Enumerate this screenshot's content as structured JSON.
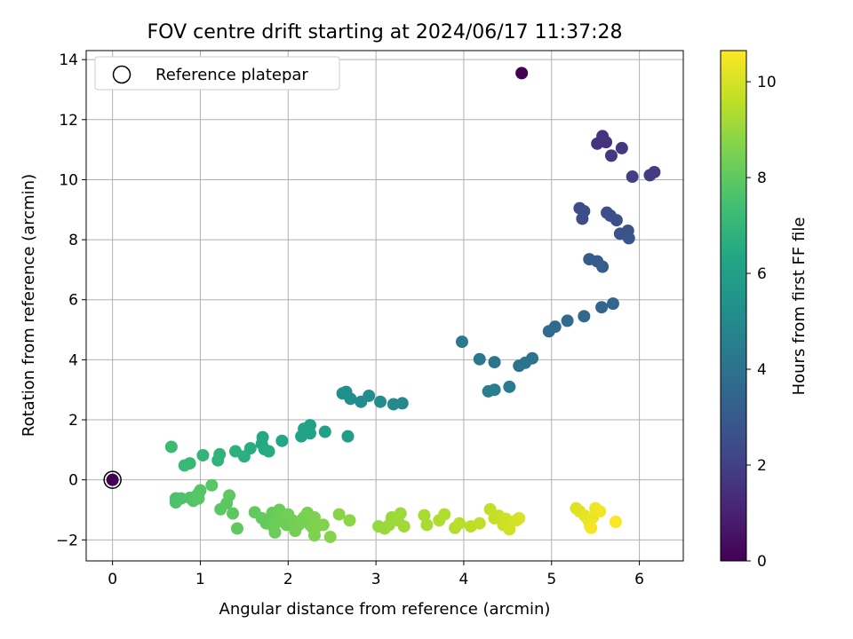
{
  "chart_data": {
    "type": "scatter",
    "title": "FOV centre drift starting at 2024/06/17 11:37:28",
    "xlabel": "Angular distance from reference (arcmin)",
    "ylabel": "Rotation from reference (arcmin)",
    "xlim": [
      -0.3,
      6.5
    ],
    "ylim": [
      -2.7,
      14.3
    ],
    "xticks": [
      0,
      1,
      2,
      3,
      4,
      5,
      6
    ],
    "yticks": [
      -2,
      0,
      2,
      4,
      6,
      8,
      10,
      12,
      14
    ],
    "grid": true,
    "legend": {
      "position": "top-left",
      "entries": [
        "Reference platepar"
      ]
    },
    "colorbar": {
      "label": "Hours from first FF file",
      "range": [
        0,
        10.65
      ],
      "ticks": [
        0,
        2,
        4,
        6,
        8,
        10
      ],
      "colormap": "viridis"
    },
    "reference_point": {
      "x": 0,
      "y": 0,
      "hours": 0
    },
    "points": [
      [
        4.66,
        13.55,
        0.0
      ],
      [
        5.58,
        11.45,
        1.5
      ],
      [
        5.52,
        11.2,
        1.6
      ],
      [
        5.62,
        11.25,
        1.6
      ],
      [
        5.8,
        11.05,
        1.7
      ],
      [
        5.68,
        10.8,
        1.75
      ],
      [
        6.12,
        10.15,
        1.85
      ],
      [
        6.17,
        10.25,
        1.85
      ],
      [
        5.92,
        10.1,
        1.95
      ],
      [
        5.32,
        9.05,
        2.4
      ],
      [
        5.37,
        8.95,
        2.45
      ],
      [
        5.35,
        8.7,
        2.5
      ],
      [
        5.63,
        8.9,
        2.55
      ],
      [
        5.67,
        8.8,
        2.6
      ],
      [
        5.74,
        8.65,
        2.65
      ],
      [
        5.87,
        8.3,
        2.7
      ],
      [
        5.78,
        8.2,
        2.75
      ],
      [
        5.88,
        8.05,
        2.8
      ],
      [
        5.43,
        7.35,
        3.0
      ],
      [
        5.52,
        7.28,
        3.05
      ],
      [
        5.58,
        7.1,
        3.1
      ],
      [
        5.7,
        5.87,
        3.5
      ],
      [
        5.57,
        5.75,
        3.55
      ],
      [
        5.37,
        5.45,
        3.6
      ],
      [
        5.18,
        5.3,
        3.65
      ],
      [
        5.04,
        5.1,
        3.7
      ],
      [
        4.97,
        4.95,
        3.75
      ],
      [
        4.78,
        4.05,
        4.0
      ],
      [
        4.7,
        3.9,
        4.05
      ],
      [
        4.63,
        3.8,
        4.1
      ],
      [
        4.35,
        3.92,
        4.15
      ],
      [
        4.18,
        4.02,
        4.2
      ],
      [
        3.98,
        4.6,
        4.3
      ],
      [
        4.52,
        3.1,
        4.45
      ],
      [
        4.35,
        3.0,
        4.5
      ],
      [
        4.28,
        2.95,
        4.55
      ],
      [
        3.3,
        2.55,
        5.0
      ],
      [
        3.2,
        2.52,
        5.05
      ],
      [
        3.05,
        2.6,
        5.1
      ],
      [
        2.92,
        2.8,
        5.15
      ],
      [
        2.83,
        2.6,
        5.2
      ],
      [
        2.71,
        2.7,
        5.25
      ],
      [
        2.66,
        2.93,
        5.3
      ],
      [
        2.62,
        2.88,
        5.3
      ],
      [
        2.68,
        1.45,
        5.9
      ],
      [
        2.42,
        1.6,
        6.0
      ],
      [
        2.25,
        1.82,
        6.05
      ],
      [
        2.18,
        1.7,
        6.1
      ],
      [
        2.25,
        1.55,
        6.1
      ],
      [
        2.15,
        1.45,
        6.15
      ],
      [
        1.93,
        1.3,
        6.3
      ],
      [
        1.71,
        1.42,
        6.4
      ],
      [
        1.7,
        1.2,
        6.45
      ],
      [
        1.73,
        1.02,
        6.5
      ],
      [
        1.78,
        0.95,
        6.55
      ],
      [
        1.57,
        1.05,
        6.6
      ],
      [
        1.5,
        0.78,
        6.7
      ],
      [
        1.4,
        0.95,
        6.75
      ],
      [
        1.22,
        0.85,
        6.85
      ],
      [
        1.2,
        0.65,
        6.9
      ],
      [
        1.03,
        0.82,
        6.95
      ],
      [
        0.88,
        0.55,
        7.1
      ],
      [
        0.82,
        0.48,
        7.15
      ],
      [
        0.67,
        1.1,
        7.2
      ],
      [
        0.72,
        -0.62,
        7.6
      ],
      [
        0.72,
        -0.75,
        7.65
      ],
      [
        0.78,
        -0.62,
        7.65
      ],
      [
        0.88,
        -0.6,
        7.7
      ],
      [
        0.92,
        -0.7,
        7.75
      ],
      [
        0.96,
        -0.52,
        7.75
      ],
      [
        0.98,
        -0.45,
        7.8
      ],
      [
        1.0,
        -0.35,
        7.8
      ],
      [
        0.98,
        -0.62,
        7.85
      ],
      [
        1.13,
        -0.18,
        7.85
      ],
      [
        1.23,
        -0.98,
        7.9
      ],
      [
        1.3,
        -0.78,
        7.9
      ],
      [
        1.33,
        -0.52,
        7.95
      ],
      [
        1.37,
        -1.12,
        7.95
      ],
      [
        1.42,
        -1.62,
        8.0
      ],
      [
        1.62,
        -1.08,
        8.05
      ],
      [
        1.7,
        -1.28,
        8.1
      ],
      [
        1.75,
        -1.45,
        8.1
      ],
      [
        1.8,
        -1.3,
        8.15
      ],
      [
        1.82,
        -1.1,
        8.15
      ],
      [
        1.83,
        -1.55,
        8.2
      ],
      [
        1.85,
        -1.75,
        8.2
      ],
      [
        1.88,
        -1.4,
        8.25
      ],
      [
        1.9,
        -1.0,
        8.25
      ],
      [
        1.93,
        -1.25,
        8.3
      ],
      [
        1.98,
        -1.5,
        8.3
      ],
      [
        2.0,
        -1.15,
        8.35
      ],
      [
        2.05,
        -1.35,
        8.35
      ],
      [
        2.08,
        -1.7,
        8.4
      ],
      [
        2.12,
        -1.5,
        8.4
      ],
      [
        2.15,
        -1.35,
        8.45
      ],
      [
        2.18,
        -1.25,
        8.45
      ],
      [
        2.22,
        -1.1,
        8.5
      ],
      [
        2.25,
        -1.5,
        8.5
      ],
      [
        2.28,
        -1.6,
        8.55
      ],
      [
        2.3,
        -1.25,
        8.55
      ],
      [
        2.33,
        -1.55,
        8.6
      ],
      [
        2.3,
        -1.85,
        8.6
      ],
      [
        2.4,
        -1.5,
        8.65
      ],
      [
        2.48,
        -1.9,
        8.7
      ],
      [
        2.58,
        -1.15,
        8.75
      ],
      [
        2.7,
        -1.35,
        8.8
      ],
      [
        3.03,
        -1.55,
        8.95
      ],
      [
        3.1,
        -1.62,
        9.0
      ],
      [
        3.15,
        -1.5,
        9.05
      ],
      [
        3.18,
        -1.25,
        9.05
      ],
      [
        3.25,
        -1.35,
        9.1
      ],
      [
        3.28,
        -1.12,
        9.1
      ],
      [
        3.32,
        -1.55,
        9.15
      ],
      [
        3.55,
        -1.18,
        9.25
      ],
      [
        3.58,
        -1.5,
        9.3
      ],
      [
        3.72,
        -1.35,
        9.35
      ],
      [
        3.78,
        -1.15,
        9.4
      ],
      [
        3.9,
        -1.6,
        9.45
      ],
      [
        3.95,
        -1.45,
        9.5
      ],
      [
        4.08,
        -1.55,
        9.55
      ],
      [
        4.18,
        -1.45,
        9.6
      ],
      [
        4.3,
        -0.98,
        9.65
      ],
      [
        4.35,
        -1.28,
        9.7
      ],
      [
        4.4,
        -1.2,
        9.75
      ],
      [
        4.45,
        -1.5,
        9.8
      ],
      [
        4.48,
        -1.3,
        9.85
      ],
      [
        4.52,
        -1.65,
        9.9
      ],
      [
        4.6,
        -1.35,
        9.95
      ],
      [
        4.63,
        -1.28,
        10.0
      ],
      [
        5.28,
        -0.95,
        10.1
      ],
      [
        5.32,
        -1.05,
        10.15
      ],
      [
        5.38,
        -1.2,
        10.2
      ],
      [
        5.42,
        -1.35,
        10.25
      ],
      [
        5.44,
        -1.55,
        10.3
      ],
      [
        5.47,
        -1.25,
        10.35
      ],
      [
        5.5,
        -0.95,
        10.4
      ],
      [
        5.55,
        -1.05,
        10.45
      ],
      [
        5.45,
        -1.6,
        10.5
      ],
      [
        5.73,
        -1.4,
        10.6
      ]
    ]
  }
}
